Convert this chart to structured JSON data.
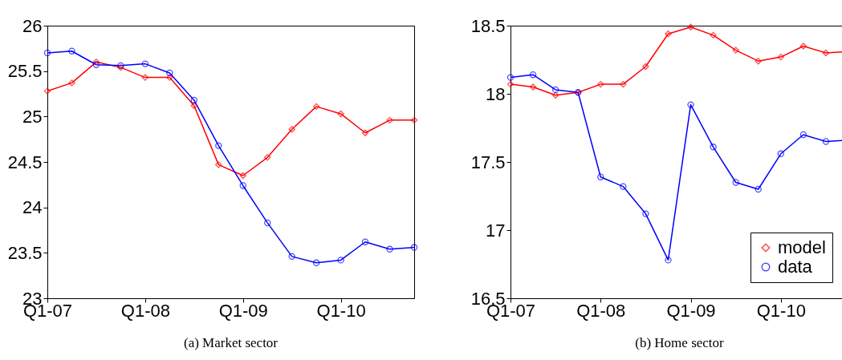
{
  "chart_data": [
    {
      "type": "line",
      "title": "(a) Market sector",
      "categories": [
        "Q1-07",
        null,
        null,
        null,
        "Q1-08",
        null,
        null,
        null,
        "Q1-09",
        null,
        null,
        null,
        "Q1-10",
        null,
        null,
        null
      ],
      "ylim": [
        23,
        26
      ],
      "yticks": [
        23,
        23.5,
        24,
        24.5,
        25,
        25.5,
        26
      ],
      "grid": false,
      "legend": false,
      "series": [
        {
          "color": "#ff0000",
          "marker": "diamond",
          "values": [
            25.28,
            25.37,
            25.6,
            25.54,
            25.43,
            25.43,
            25.12,
            24.47,
            24.35,
            24.55,
            24.86,
            25.11,
            25.03,
            24.82,
            24.96,
            24.96
          ]
        },
        {
          "color": "#0000ff",
          "marker": "circle",
          "values": [
            25.7,
            25.72,
            25.57,
            25.56,
            25.58,
            25.48,
            25.18,
            24.68,
            24.24,
            23.83,
            23.46,
            23.39,
            23.42,
            23.62,
            23.54,
            23.56
          ]
        }
      ]
    },
    {
      "type": "line",
      "title": "(b) Home sector",
      "categories": [
        "Q1-07",
        null,
        null,
        null,
        "Q1-08",
        null,
        null,
        null,
        "Q1-09",
        null,
        null,
        null,
        "Q1-10",
        null,
        null,
        null
      ],
      "ylim": [
        16.5,
        18.5
      ],
      "yticks": [
        16.5,
        17,
        17.5,
        18,
        18.5
      ],
      "grid": false,
      "legend": "bottom right",
      "series": [
        {
          "name": "model",
          "color": "#ff0000",
          "marker": "diamond",
          "values": [
            18.07,
            18.05,
            17.99,
            18.01,
            18.07,
            18.07,
            18.2,
            18.44,
            18.49,
            18.43,
            18.32,
            18.24,
            18.27,
            18.35,
            18.3,
            18.31
          ]
        },
        {
          "name": "data",
          "color": "#0000ff",
          "marker": "circle",
          "values": [
            18.12,
            18.14,
            18.03,
            18.01,
            17.39,
            17.32,
            17.12,
            16.78,
            17.92,
            17.61,
            17.35,
            17.3,
            17.56,
            17.7,
            17.65,
            17.66
          ]
        }
      ]
    }
  ]
}
